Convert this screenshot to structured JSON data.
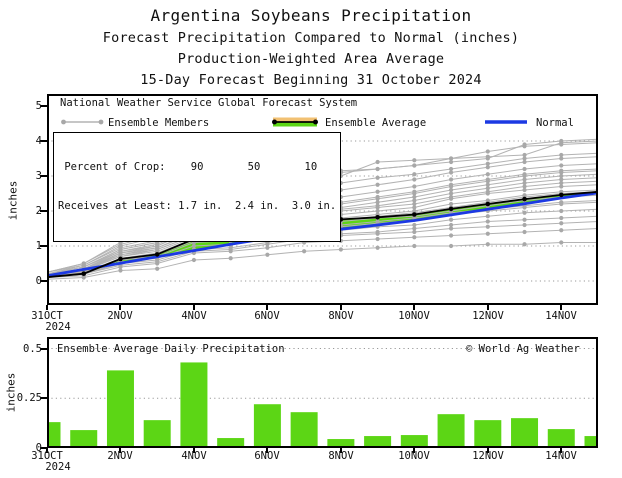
{
  "title": {
    "line1": "Argentina Soybeans Precipitation",
    "line2": "Forecast Precipitation Compared to Normal (inches)",
    "line3": "Production-Weighted Area Average",
    "line4": "15-Day Forecast Beginning 31 October 2024"
  },
  "top_chart": {
    "legend_header": "National Weather Service Global Forecast System",
    "legend_members_label": "Ensemble Members",
    "legend_average_label": "Ensemble Average",
    "legend_normal_label": "Normal",
    "crop_table_row1": " Percent of Crop:    90       50       10",
    "crop_table_row2": "Receives at Least: 1.7 in.  2.4 in.  3.0 in.",
    "ylabel": "inches",
    "yticks": [
      "5",
      "4",
      "3",
      "2",
      "1",
      "0"
    ],
    "xticks": [
      "31OCT",
      "2NOV",
      "4NOV",
      "6NOV",
      "8NOV",
      "10NOV",
      "12NOV",
      "14NOV"
    ],
    "year": "2024"
  },
  "bottom_chart": {
    "title": "Ensemble Average Daily Precipitation",
    "credit": "© World Ag Weather",
    "ylabel": "inches",
    "yticks": [
      "0.5",
      "0.25",
      "0"
    ],
    "xticks": [
      "31OCT",
      "2NOV",
      "4NOV",
      "6NOV",
      "8NOV",
      "10NOV",
      "12NOV",
      "14NOV"
    ],
    "year": "2024"
  },
  "colors": {
    "member_gray": "#b3b3b3",
    "marker_gray": "#a8a8a8",
    "average_black": "#000000",
    "normal_blue": "#1c39e3",
    "fill_green": "#5cd615",
    "fill_tan": "#f2c173",
    "bar_green": "#5cd615",
    "grid_gray": "#9a9a9a",
    "frame_black": "#000000"
  },
  "chart_data": [
    {
      "type": "line",
      "title": "Forecast cumulative precipitation compared to normal",
      "ylabel": "inches",
      "ylim": [
        0,
        5
      ],
      "grid": "dotted horizontal at 0,1,2,3,4",
      "legend_position": "top-left inside frame",
      "x": [
        "31OCT",
        "1NOV",
        "2NOV",
        "3NOV",
        "4NOV",
        "5NOV",
        "6NOV",
        "7NOV",
        "8NOV",
        "9NOV",
        "10NOV",
        "11NOV",
        "12NOV",
        "13NOV",
        "14NOV",
        "15NOV"
      ],
      "series": [
        {
          "name": "Ensemble Average",
          "values": [
            0.11,
            0.21,
            0.63,
            0.76,
            1.2,
            1.27,
            1.51,
            1.68,
            1.76,
            1.82,
            1.9,
            2.06,
            2.2,
            2.34,
            2.46,
            2.55
          ]
        },
        {
          "name": "Normal",
          "values": [
            0.15,
            0.33,
            0.51,
            0.69,
            0.87,
            1.05,
            1.22,
            1.35,
            1.48,
            1.6,
            1.73,
            1.89,
            2.05,
            2.21,
            2.37,
            2.52
          ]
        }
      ],
      "ensemble_members": [
        [
          0.05,
          0.1,
          0.3,
          0.35,
          0.6,
          0.65,
          0.75,
          0.85,
          0.9,
          0.95,
          1.0,
          1.0,
          1.05,
          1.05,
          1.1,
          1.1
        ],
        [
          0.1,
          0.15,
          0.4,
          0.5,
          0.8,
          0.85,
          0.95,
          1.1,
          1.15,
          1.2,
          1.25,
          1.3,
          1.35,
          1.4,
          1.45,
          1.5
        ],
        [
          0.1,
          0.2,
          0.5,
          0.6,
          0.9,
          0.95,
          1.1,
          1.3,
          1.35,
          1.4,
          1.5,
          1.6,
          1.7,
          1.75,
          1.8,
          1.85
        ],
        [
          0.1,
          0.2,
          0.55,
          0.65,
          1.0,
          1.05,
          1.2,
          1.4,
          1.45,
          1.55,
          1.6,
          1.75,
          1.85,
          1.95,
          2.0,
          2.05
        ],
        [
          0.15,
          0.25,
          0.6,
          0.7,
          1.1,
          1.15,
          1.35,
          1.5,
          1.55,
          1.65,
          1.75,
          1.9,
          2.0,
          2.1,
          2.2,
          2.25
        ],
        [
          0.1,
          0.25,
          0.65,
          0.8,
          1.2,
          1.25,
          1.45,
          1.65,
          1.7,
          1.8,
          1.85,
          2.0,
          2.15,
          2.3,
          2.4,
          2.45
        ],
        [
          0.15,
          0.3,
          0.7,
          0.85,
          1.25,
          1.3,
          1.55,
          1.75,
          1.8,
          1.9,
          2.0,
          2.2,
          2.3,
          2.45,
          2.55,
          2.6
        ],
        [
          0.15,
          0.3,
          0.75,
          0.9,
          1.3,
          1.4,
          1.6,
          1.85,
          1.9,
          2.0,
          2.1,
          2.35,
          2.5,
          2.6,
          2.7,
          2.75
        ],
        [
          0.2,
          0.35,
          0.8,
          0.95,
          1.4,
          1.5,
          1.75,
          1.95,
          2.05,
          2.15,
          2.3,
          2.5,
          2.65,
          2.8,
          2.9,
          2.95
        ],
        [
          0.2,
          0.4,
          0.85,
          1.05,
          1.5,
          1.6,
          1.85,
          2.1,
          2.2,
          2.35,
          2.5,
          2.7,
          2.85,
          3.0,
          3.1,
          3.15
        ],
        [
          0.25,
          0.45,
          0.95,
          1.15,
          1.6,
          1.7,
          2.0,
          2.25,
          2.4,
          2.55,
          2.7,
          2.9,
          3.05,
          3.2,
          3.3,
          3.35
        ],
        [
          0.25,
          0.5,
          1.05,
          1.3,
          1.75,
          1.9,
          2.2,
          2.5,
          2.6,
          2.75,
          2.9,
          3.1,
          3.25,
          3.4,
          3.5,
          3.55
        ],
        [
          0.2,
          0.4,
          0.9,
          1.1,
          2.9,
          3.0,
          3.05,
          3.1,
          3.15,
          3.2,
          3.3,
          3.5,
          3.7,
          3.85,
          3.9,
          3.95
        ],
        [
          0.15,
          0.3,
          0.8,
          1.0,
          1.5,
          2.2,
          2.9,
          3.0,
          3.1,
          3.2,
          3.3,
          3.4,
          3.5,
          3.9,
          4.0,
          4.05
        ],
        [
          0.2,
          0.45,
          1.0,
          1.25,
          1.8,
          2.0,
          2.5,
          2.9,
          3.0,
          3.4,
          3.45,
          3.5,
          3.55,
          3.6,
          3.95,
          4.0
        ],
        [
          0.1,
          0.2,
          0.45,
          0.55,
          0.85,
          0.9,
          1.05,
          1.2,
          1.3,
          1.35,
          1.4,
          1.5,
          1.55,
          1.6,
          1.65,
          1.7
        ],
        [
          0.15,
          0.35,
          0.75,
          0.95,
          1.35,
          1.45,
          1.7,
          1.9,
          2.0,
          2.1,
          2.2,
          2.4,
          2.55,
          2.7,
          2.8,
          2.85
        ],
        [
          0.1,
          0.3,
          0.7,
          0.9,
          1.3,
          1.35,
          1.5,
          1.7,
          1.75,
          1.85,
          1.95,
          2.1,
          2.25,
          2.4,
          2.5,
          2.55
        ],
        [
          0.2,
          0.4,
          0.9,
          1.1,
          1.55,
          1.65,
          1.9,
          2.15,
          2.25,
          2.4,
          2.55,
          2.75,
          2.9,
          3.05,
          3.15,
          3.2
        ],
        [
          0.15,
          0.35,
          0.85,
          1.0,
          1.45,
          1.55,
          1.8,
          2.0,
          2.1,
          2.25,
          2.4,
          2.6,
          2.75,
          2.9,
          3.0,
          3.05
        ],
        [
          0.1,
          0.25,
          0.6,
          0.75,
          1.15,
          1.2,
          1.4,
          1.55,
          1.6,
          1.7,
          1.8,
          1.95,
          2.05,
          2.15,
          2.25,
          2.3
        ],
        [
          0.25,
          0.5,
          1.1,
          1.35,
          1.9,
          2.05,
          2.4,
          2.7,
          2.8,
          2.95,
          3.05,
          3.2,
          3.35,
          3.5,
          3.6,
          3.65
        ]
      ],
      "crop_probability_table": {
        "percent_of_crop": [
          90,
          50,
          10
        ],
        "receives_at_least_inches": [
          1.7,
          2.4,
          3.0
        ]
      }
    },
    {
      "type": "bar",
      "title": "Ensemble Average Daily Precipitation",
      "ylabel": "inches",
      "ylim": [
        0,
        0.5
      ],
      "grid": "dotted horizontal at 0.25 and 0.5",
      "categories": [
        "31OCT",
        "1NOV",
        "2NOV",
        "3NOV",
        "4NOV",
        "5NOV",
        "6NOV",
        "7NOV",
        "8NOV",
        "9NOV",
        "10NOV",
        "11NOV",
        "12NOV",
        "13NOV",
        "14NOV",
        "15NOV"
      ],
      "values": [
        0.13,
        0.09,
        0.39,
        0.14,
        0.43,
        0.05,
        0.22,
        0.18,
        0.045,
        0.06,
        0.065,
        0.17,
        0.14,
        0.15,
        0.095,
        0.06
      ]
    }
  ]
}
